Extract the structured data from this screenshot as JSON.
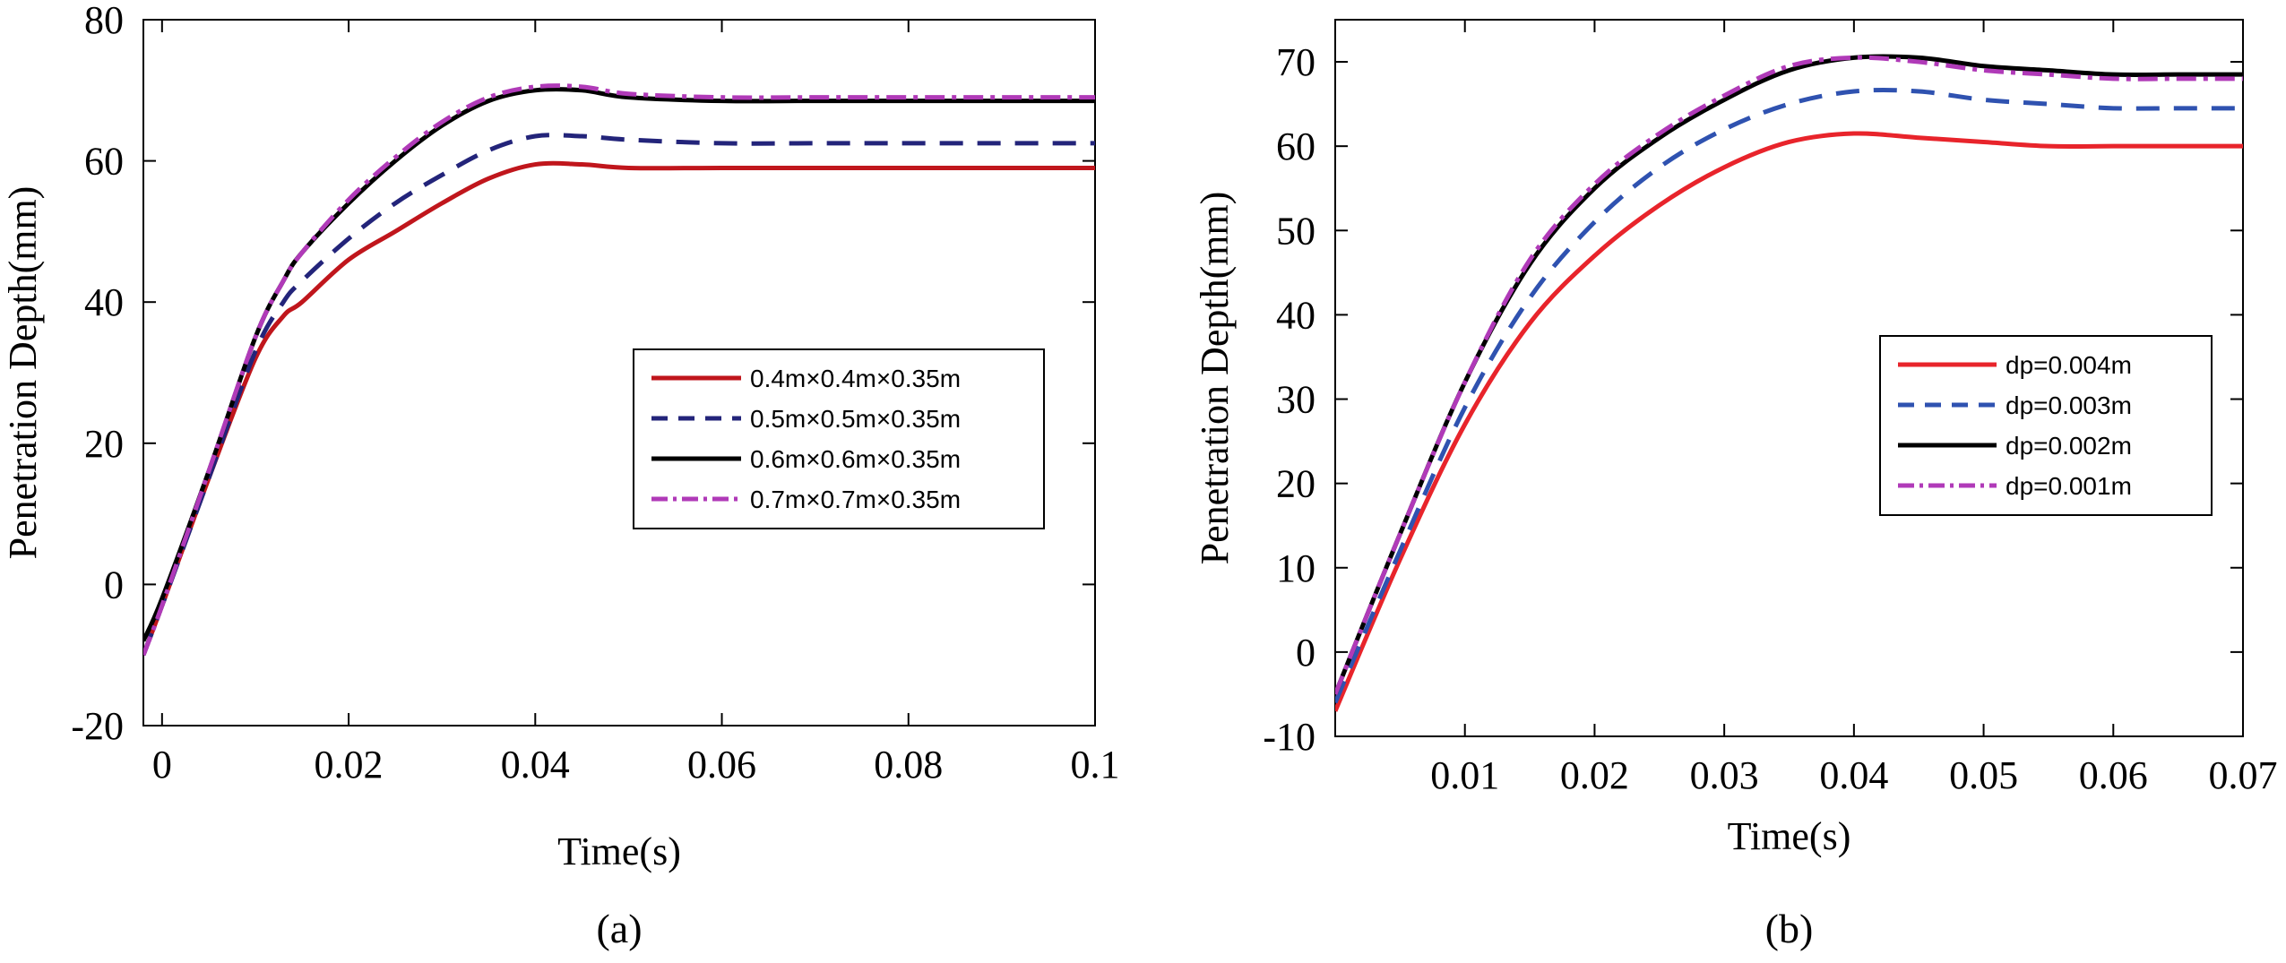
{
  "chart_data": [
    {
      "type": "line",
      "panel_label": "(a)",
      "xlabel": "Time(s)",
      "ylabel": "Penetration Depth(mm)",
      "xlim": [
        -0.002,
        0.1
      ],
      "ylim": [
        -20,
        80
      ],
      "xticks": [
        0,
        0.02,
        0.04,
        0.06,
        0.08,
        0.1
      ],
      "xtick_labels": [
        "0",
        "0.02",
        "0.04",
        "0.06",
        "0.08",
        "0.1"
      ],
      "yticks": [
        -20,
        0,
        20,
        40,
        60,
        80
      ],
      "ytick_labels": [
        "-20",
        "0",
        "20",
        "40",
        "60",
        "80"
      ],
      "grid": false,
      "legend_position": "right",
      "series": [
        {
          "name": "0.4m×0.4m×0.35m",
          "color": "#c0161c",
          "dash": "solid",
          "x": [
            -0.002,
            0,
            0.005,
            0.01,
            0.013,
            0.015,
            0.02,
            0.025,
            0.03,
            0.035,
            0.04,
            0.045,
            0.05,
            0.06,
            0.07,
            0.08,
            0.09,
            0.1
          ],
          "y": [
            -10,
            -3,
            15,
            32,
            38,
            40,
            46,
            50,
            54,
            57.5,
            59.5,
            59.5,
            59,
            59,
            59,
            59,
            59,
            59
          ]
        },
        {
          "name": "0.5m×0.5m×0.35m",
          "color": "#23247a",
          "dash": "dashed",
          "x": [
            -0.002,
            0,
            0.005,
            0.01,
            0.013,
            0.015,
            0.02,
            0.025,
            0.03,
            0.035,
            0.04,
            0.045,
            0.05,
            0.06,
            0.07,
            0.08,
            0.09,
            0.1
          ],
          "y": [
            -10,
            -3,
            15,
            33,
            40,
            43,
            49,
            54,
            58,
            61.5,
            63.5,
            63.5,
            63,
            62.5,
            62.5,
            62.5,
            62.5,
            62.5
          ]
        },
        {
          "name": "0.6m×0.6m×0.35m",
          "color": "#000000",
          "dash": "solid",
          "x": [
            -0.002,
            0,
            0.005,
            0.01,
            0.013,
            0.015,
            0.02,
            0.025,
            0.03,
            0.035,
            0.04,
            0.045,
            0.05,
            0.06,
            0.07,
            0.08,
            0.09,
            0.1
          ],
          "y": [
            -8,
            -2,
            16,
            35,
            43,
            47,
            54,
            60,
            65,
            68.5,
            70,
            70,
            69,
            68.5,
            68.5,
            68.5,
            68.5,
            68.5
          ]
        },
        {
          "name": "0.7m×0.7m×0.35m",
          "color": "#b03ab8",
          "dash": "dashdot",
          "x": [
            -0.002,
            0,
            0.005,
            0.01,
            0.013,
            0.015,
            0.02,
            0.025,
            0.03,
            0.035,
            0.04,
            0.045,
            0.05,
            0.06,
            0.07,
            0.08,
            0.09,
            0.1
          ],
          "y": [
            -10,
            -3,
            16,
            35,
            43,
            47,
            54.5,
            60.5,
            65.5,
            69,
            70.5,
            70.5,
            69.5,
            69,
            69,
            69,
            69,
            69
          ]
        }
      ]
    },
    {
      "type": "line",
      "panel_label": "(b)",
      "xlabel": "Time(s)",
      "ylabel": "Penetration Depth(mm)",
      "xlim": [
        0,
        0.07
      ],
      "ylim": [
        -10,
        75
      ],
      "xticks": [
        0.01,
        0.02,
        0.03,
        0.04,
        0.05,
        0.06,
        0.07
      ],
      "xtick_labels": [
        "0.01",
        "0.02",
        "0.03",
        "0.04",
        "0.05",
        "0.06",
        "0.07"
      ],
      "yticks": [
        -10,
        0,
        10,
        20,
        30,
        40,
        50,
        60,
        70
      ],
      "ytick_labels": [
        "-10",
        "0",
        "10",
        "20",
        "30",
        "40",
        "50",
        "60",
        "70"
      ],
      "grid": false,
      "legend_position": "right",
      "series": [
        {
          "name": "dp=0.004m",
          "color": "#e8242b",
          "dash": "solid",
          "x": [
            0,
            0.005,
            0.01,
            0.015,
            0.02,
            0.025,
            0.03,
            0.035,
            0.04,
            0.045,
            0.05,
            0.055,
            0.06,
            0.065,
            0.07
          ],
          "y": [
            -7,
            11,
            27,
            39,
            47,
            53,
            57.5,
            60.5,
            61.5,
            61,
            60.5,
            60,
            60,
            60,
            60
          ]
        },
        {
          "name": "dp=0.003m",
          "color": "#2f52b0",
          "dash": "dashed",
          "x": [
            0,
            0.005,
            0.01,
            0.015,
            0.02,
            0.025,
            0.03,
            0.035,
            0.04,
            0.045,
            0.05,
            0.055,
            0.06,
            0.065,
            0.07
          ],
          "y": [
            -6,
            12,
            29,
            42,
            51,
            57.5,
            62,
            65,
            66.5,
            66.5,
            65.5,
            65,
            64.5,
            64.5,
            64.5
          ]
        },
        {
          "name": "dp=0.002m",
          "color": "#000000",
          "dash": "solid",
          "x": [
            0,
            0.005,
            0.01,
            0.015,
            0.02,
            0.025,
            0.03,
            0.035,
            0.04,
            0.045,
            0.05,
            0.055,
            0.06,
            0.065,
            0.07
          ],
          "y": [
            -5,
            14,
            32,
            46,
            55,
            61,
            65.5,
            69,
            70.5,
            70.5,
            69.5,
            69,
            68.5,
            68.5,
            68.5
          ]
        },
        {
          "name": "dp=0.001m",
          "color": "#b03ab8",
          "dash": "dashdot",
          "x": [
            0,
            0.005,
            0.01,
            0.015,
            0.02,
            0.025,
            0.03,
            0.035,
            0.04,
            0.045,
            0.05,
            0.055,
            0.06,
            0.065,
            0.07
          ],
          "y": [
            -5,
            14,
            32,
            46.5,
            55.5,
            61.5,
            66,
            69.5,
            70.5,
            70,
            69,
            68.5,
            68,
            68,
            68
          ]
        }
      ]
    }
  ]
}
